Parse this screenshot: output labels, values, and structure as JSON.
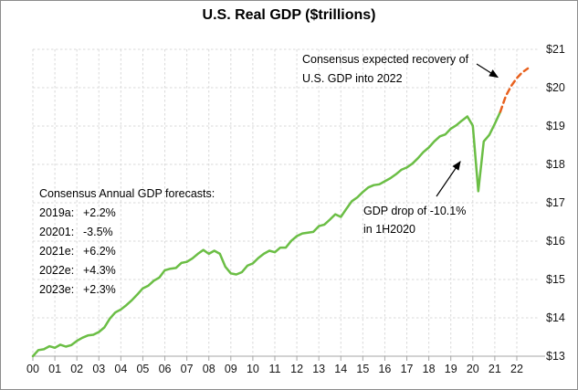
{
  "title": "U.S. Real GDP ($trillions)",
  "annotations": {
    "recovery": {
      "line1": "Consensus expected recovery of",
      "line2": "U.S. GDP into 2022"
    },
    "drop": {
      "line1": "GDP drop of -10.1%",
      "line2": "in 1H2020"
    },
    "forecasts": {
      "heading": "Consensus Annual GDP forecasts:",
      "rows": [
        {
          "label": "2019a:",
          "value": "+2.2%"
        },
        {
          "label": "20201:",
          "value": "-3.5%"
        },
        {
          "label": "2021e:",
          "value": "+6.2%"
        },
        {
          "label": "2022e:",
          "value": "+4.3%"
        },
        {
          "label": "2023e:",
          "value": "+2.3%"
        }
      ]
    }
  },
  "colors": {
    "actual_line": "#6bbe45",
    "forecast_line": "#e8611e",
    "gridline": "#d9d9d9",
    "axis": "#a6a6a6",
    "text": "#000000",
    "border": "#8c8c8c"
  },
  "chart_data": {
    "type": "line",
    "title": "U.S. Real GDP ($trillions)",
    "xlabel": "",
    "ylabel": "",
    "grid": true,
    "legend": "none",
    "y_axis_side": "right",
    "ylim": [
      13,
      21
    ],
    "xlim_years": [
      2000,
      2023
    ],
    "y_ticks": {
      "values": [
        13,
        14,
        15,
        16,
        17,
        18,
        19,
        20,
        21
      ],
      "labels": [
        "$13",
        "$14",
        "$15",
        "$16",
        "$17",
        "$18",
        "$19",
        "$20",
        "$21"
      ]
    },
    "x_tick_labels": [
      "00",
      "01",
      "02",
      "03",
      "04",
      "05",
      "06",
      "07",
      "08",
      "09",
      "10",
      "11",
      "12",
      "13",
      "14",
      "15",
      "16",
      "17",
      "18",
      "19",
      "20",
      "21",
      "22"
    ],
    "series": [
      {
        "name": "actual-gdp",
        "color": "#6bbe45",
        "style": "solid",
        "x_start_year": 2000.0,
        "x_step_years": 0.25,
        "values": [
          13.0,
          13.16,
          13.18,
          13.26,
          13.22,
          13.3,
          13.25,
          13.29,
          13.4,
          13.48,
          13.54,
          13.56,
          13.63,
          13.75,
          13.98,
          14.14,
          14.22,
          14.33,
          14.46,
          14.61,
          14.77,
          14.84,
          14.97,
          15.05,
          15.24,
          15.28,
          15.3,
          15.43,
          15.46,
          15.55,
          15.67,
          15.77,
          15.67,
          15.75,
          15.67,
          15.33,
          15.16,
          15.13,
          15.19,
          15.36,
          15.42,
          15.56,
          15.67,
          15.75,
          15.71,
          15.83,
          15.83,
          16.01,
          16.13,
          16.2,
          16.22,
          16.24,
          16.39,
          16.43,
          16.56,
          16.7,
          16.63,
          16.84,
          17.04,
          17.14,
          17.28,
          17.4,
          17.46,
          17.48,
          17.56,
          17.64,
          17.74,
          17.86,
          17.92,
          18.02,
          18.16,
          18.32,
          18.44,
          18.6,
          18.73,
          18.78,
          18.93,
          19.02,
          19.14,
          19.25,
          19.01,
          17.3,
          18.6,
          18.77,
          19.06,
          19.37
        ]
      },
      {
        "name": "consensus-forecast",
        "color": "#e8611e",
        "style": "dashed",
        "x_start_year": 2021.25,
        "x_step_years": 0.25,
        "values": [
          19.37,
          19.78,
          20.05,
          20.25,
          20.4,
          20.5
        ]
      }
    ]
  }
}
